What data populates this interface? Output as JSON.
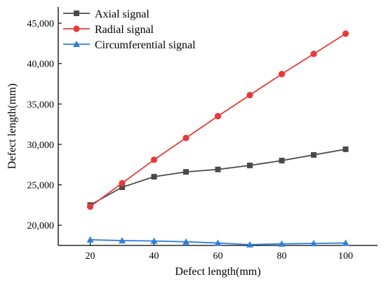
{
  "chart_data": {
    "type": "line",
    "title": "",
    "xlabel": "Defect length(mm)",
    "ylabel": "Defect length(mm)",
    "x": [
      20,
      30,
      40,
      50,
      60,
      70,
      80,
      90,
      100
    ],
    "xlim": [
      10,
      110
    ],
    "ylim": [
      17500,
      47000
    ],
    "xticks": [
      20,
      40,
      60,
      80,
      100
    ],
    "yticks": [
      20000,
      25000,
      30000,
      35000,
      40000,
      45000
    ],
    "ytick_labels": [
      "20,000",
      "25,000",
      "30,000",
      "35,000",
      "40,000",
      "45,000"
    ],
    "grid": false,
    "legend_position": "top-left",
    "series": [
      {
        "name": "Axial signal",
        "color": "#4a4a4a",
        "marker": "square",
        "values": [
          22500,
          24700,
          26000,
          26600,
          26900,
          27400,
          28000,
          28700,
          29400
        ]
      },
      {
        "name": "Radial signal",
        "color": "#e8393a",
        "marker": "circle",
        "values": [
          22300,
          25200,
          28100,
          30800,
          33500,
          36100,
          38700,
          41200,
          43700
        ]
      },
      {
        "name": "Circumferential signal",
        "color": "#2f7fd8",
        "marker": "triangle",
        "values": [
          18200,
          18100,
          18050,
          17950,
          17800,
          17600,
          17700,
          17750,
          17800
        ]
      }
    ]
  }
}
